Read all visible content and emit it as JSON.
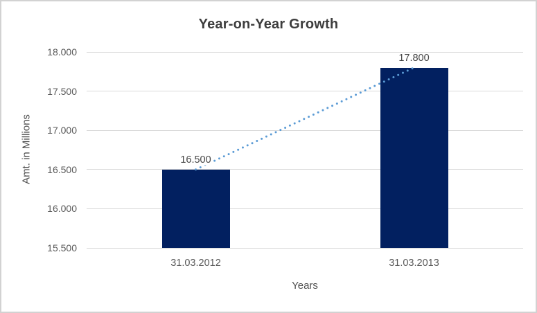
{
  "chart": {
    "title": "Year-on-Year Growth",
    "y_axis_title": "Amt. in Millions",
    "x_axis_title": "Years"
  },
  "chart_data": {
    "type": "bar",
    "title": "Year-on-Year Growth",
    "xlabel": "Years",
    "ylabel": "Amt. in Millions",
    "categories": [
      "31.03.2012",
      "31.03.2013"
    ],
    "values": [
      16500,
      17800
    ],
    "value_labels": [
      "16.500",
      "17.800"
    ],
    "ylim": [
      15500,
      18000
    ],
    "yticks": [
      {
        "value": 15500,
        "label": "15.500"
      },
      {
        "value": 16000,
        "label": "16.000"
      },
      {
        "value": 16500,
        "label": "16.500"
      },
      {
        "value": 17000,
        "label": "17.000"
      },
      {
        "value": 17500,
        "label": "17.500"
      },
      {
        "value": 18000,
        "label": "18.000"
      }
    ],
    "grid": "horizontal",
    "legend": "none",
    "trendline": {
      "type": "linear",
      "style": "dotted",
      "from_point": [
        16500,
        "31.03.2012"
      ],
      "to_point": [
        17800,
        "31.03.2013"
      ]
    },
    "colors": {
      "bar": "#022060",
      "trendline": "#5b9bd5",
      "gridline": "#d9d9d9",
      "tick_text": "#595959",
      "data_label_text": "#444444",
      "title_text": "#3d3d3d",
      "frame_border": "#d2d2d2"
    }
  }
}
